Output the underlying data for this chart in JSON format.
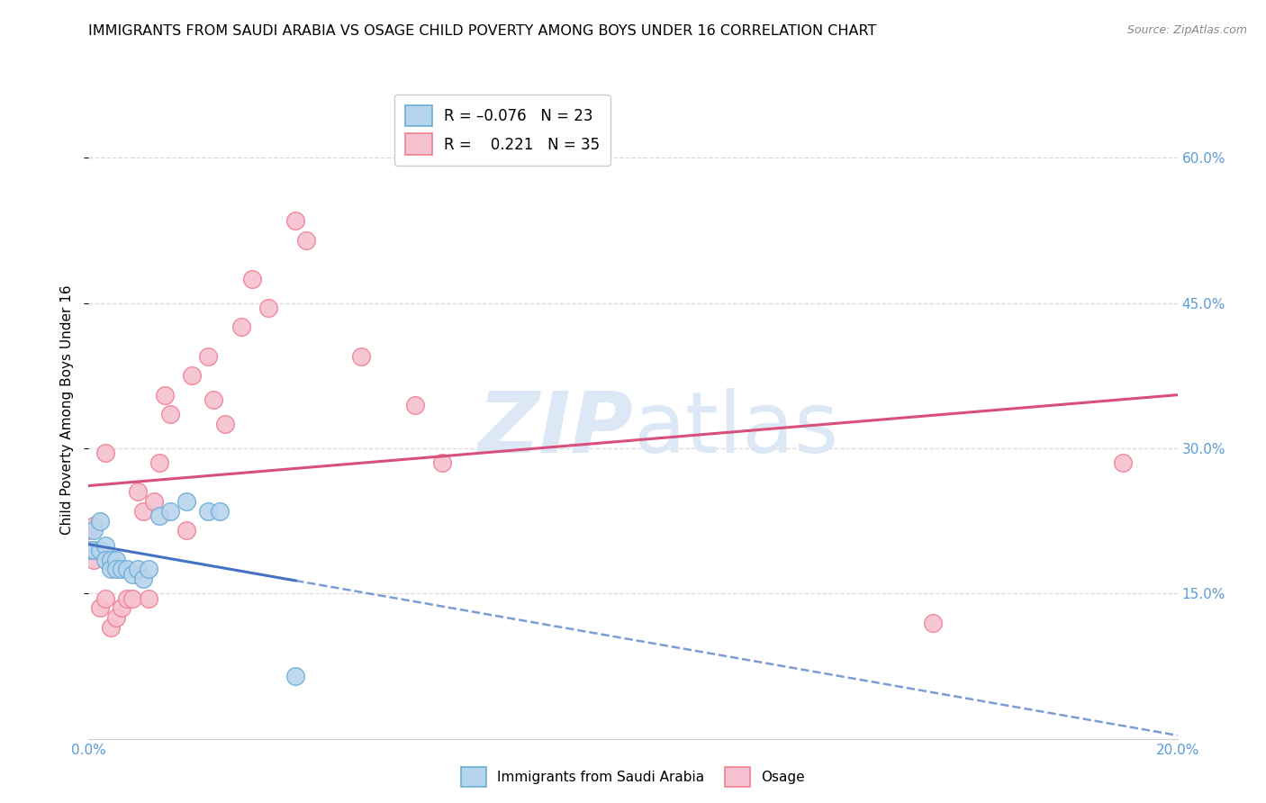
{
  "title": "IMMIGRANTS FROM SAUDI ARABIA VS OSAGE CHILD POVERTY AMONG BOYS UNDER 16 CORRELATION CHART",
  "source": "Source: ZipAtlas.com",
  "ylabel": "Child Poverty Among Boys Under 16",
  "xlim": [
    0.0,
    0.2
  ],
  "ylim": [
    0.0,
    0.68
  ],
  "yticks_right": [
    0.15,
    0.3,
    0.45,
    0.6
  ],
  "ytick_right_labels": [
    "15.0%",
    "30.0%",
    "45.0%",
    "60.0%"
  ],
  "blue_dots_x": [
    0.0,
    0.001,
    0.001,
    0.002,
    0.002,
    0.003,
    0.003,
    0.004,
    0.004,
    0.005,
    0.005,
    0.006,
    0.007,
    0.008,
    0.009,
    0.01,
    0.011,
    0.013,
    0.015,
    0.018,
    0.022,
    0.024,
    0.038
  ],
  "blue_dots_y": [
    0.195,
    0.215,
    0.195,
    0.225,
    0.195,
    0.2,
    0.185,
    0.185,
    0.175,
    0.185,
    0.175,
    0.175,
    0.175,
    0.17,
    0.175,
    0.165,
    0.175,
    0.23,
    0.235,
    0.245,
    0.235,
    0.235,
    0.065
  ],
  "pink_dots_x": [
    0.0,
    0.001,
    0.001,
    0.002,
    0.002,
    0.003,
    0.003,
    0.004,
    0.004,
    0.005,
    0.006,
    0.007,
    0.008,
    0.009,
    0.01,
    0.011,
    0.012,
    0.013,
    0.014,
    0.015,
    0.018,
    0.019,
    0.022,
    0.023,
    0.025,
    0.028,
    0.03,
    0.033,
    0.038,
    0.04,
    0.05,
    0.06,
    0.065,
    0.155,
    0.19
  ],
  "pink_dots_y": [
    0.215,
    0.22,
    0.185,
    0.195,
    0.135,
    0.145,
    0.295,
    0.185,
    0.115,
    0.125,
    0.135,
    0.145,
    0.145,
    0.255,
    0.235,
    0.145,
    0.245,
    0.285,
    0.355,
    0.335,
    0.215,
    0.375,
    0.395,
    0.35,
    0.325,
    0.425,
    0.475,
    0.445,
    0.535,
    0.515,
    0.395,
    0.345,
    0.285,
    0.12,
    0.285
  ],
  "blue_R": -0.076,
  "blue_N": 23,
  "pink_R": 0.221,
  "pink_N": 35,
  "blue_fill_color": "#b8d4ed",
  "pink_fill_color": "#f7c0d0",
  "blue_edge_color": "#6aaed6",
  "pink_edge_color": "#f08090",
  "blue_line_color": "#4472c4",
  "pink_line_color": "#d94f7c",
  "watermark_color": "#dce8f5",
  "grid_color": "#d0d0d0",
  "title_fontsize": 11.5,
  "axis_label_fontsize": 11,
  "tick_fontsize": 11
}
